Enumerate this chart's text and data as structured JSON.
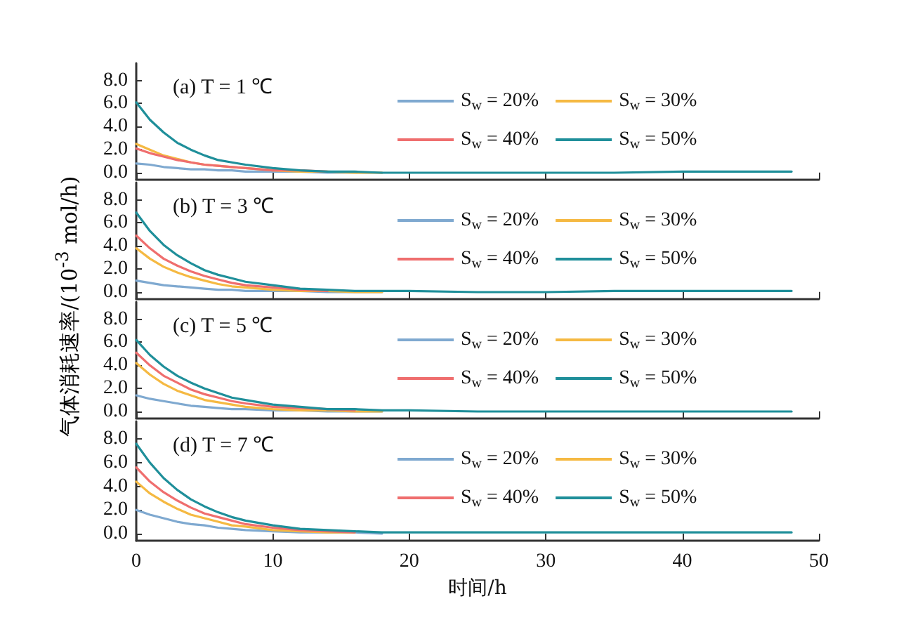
{
  "chart_data": [
    {
      "type": "line",
      "title": "(a) T = 1 ℃",
      "x": [
        0,
        1,
        2,
        3,
        4,
        5,
        6,
        7,
        8,
        10,
        12,
        14,
        16,
        18,
        20,
        25,
        30,
        35,
        40,
        45,
        48
      ],
      "xlim": [
        0,
        50
      ],
      "xticks": [
        0,
        10,
        20,
        30,
        40,
        50
      ],
      "ylim": [
        -0.6,
        9.5
      ],
      "yticks": [
        {
          "value": 0,
          "label": "0.0"
        },
        {
          "value": 2,
          "label": "2.0"
        },
        {
          "value": 4,
          "label": "4.0"
        },
        {
          "value": 6,
          "label": "6.0"
        },
        {
          "value": 8,
          "label": "8.0"
        }
      ],
      "tick_labels": "y",
      "marker": "none",
      "legend": "right",
      "series": [
        {
          "name": "S$_{w}$ = 20%",
          "color": "#7fa9d0",
          "values": [
            0.8,
            0.7,
            0.5,
            0.4,
            0.3,
            0.3,
            0.2,
            0.2,
            0.1,
            0.1,
            0.1,
            0.0,
            0.0,
            0.0,
            null,
            null,
            null,
            null,
            null,
            null,
            null
          ]
        },
        {
          "name": "S$_{w}$ = 30%",
          "color": "#f5b942",
          "values": [
            2.5,
            2.0,
            1.5,
            1.2,
            0.9,
            0.7,
            0.6,
            0.5,
            0.4,
            0.2,
            0.1,
            0.1,
            0.0,
            0.0,
            null,
            null,
            null,
            null,
            null,
            null,
            null
          ]
        },
        {
          "name": "S$_{w}$ = 40%",
          "color": "#ef6e6e",
          "values": [
            2.1,
            1.7,
            1.4,
            1.1,
            0.9,
            0.7,
            0.6,
            0.5,
            0.4,
            0.2,
            0.2,
            0.1,
            null,
            null,
            null,
            null,
            null,
            null,
            null,
            null,
            null
          ]
        },
        {
          "name": "S$_{w}$ = 50%",
          "color": "#1f8f9a",
          "values": [
            6.1,
            4.6,
            3.5,
            2.6,
            2.0,
            1.5,
            1.1,
            0.9,
            0.7,
            0.4,
            0.2,
            0.1,
            0.1,
            0.0,
            0.0,
            0.0,
            0.0,
            0.0,
            0.1,
            0.1,
            0.1
          ]
        }
      ]
    },
    {
      "type": "line",
      "title": "(b) T = 3 ℃",
      "ylabel": "气体消耗速率/(10$^{-3}$ mol/h)",
      "x": [
        0,
        1,
        2,
        3,
        4,
        5,
        6,
        7,
        8,
        10,
        12,
        14,
        16,
        18,
        20,
        25,
        30,
        35,
        40,
        45,
        48
      ],
      "xlim": [
        0,
        50
      ],
      "xticks": [
        0,
        10,
        20,
        30,
        40,
        50
      ],
      "ylim": [
        -0.6,
        9.5
      ],
      "yticks": [
        {
          "value": 0,
          "label": "0.0"
        },
        {
          "value": 2,
          "label": "2.0"
        },
        {
          "value": 4,
          "label": "4.0"
        },
        {
          "value": 6,
          "label": "6.0"
        },
        {
          "value": 8,
          "label": "8.0"
        }
      ],
      "tick_labels": "y",
      "marker": "none",
      "legend": "right",
      "series": [
        {
          "name": "S$_{w}$ = 20%",
          "color": "#7fa9d0",
          "values": [
            1.0,
            0.8,
            0.6,
            0.5,
            0.4,
            0.3,
            0.2,
            0.2,
            0.1,
            0.1,
            0.1,
            0.0,
            0.0,
            0.0,
            null,
            null,
            null,
            null,
            null,
            null,
            null
          ]
        },
        {
          "name": "S$_{w}$ = 30%",
          "color": "#f5b942",
          "values": [
            3.8,
            2.9,
            2.2,
            1.7,
            1.3,
            1.0,
            0.7,
            0.5,
            0.4,
            0.2,
            0.1,
            0.1,
            0.0,
            0.0,
            null,
            null,
            null,
            null,
            null,
            null,
            null
          ]
        },
        {
          "name": "S$_{w}$ = 40%",
          "color": "#ef6e6e",
          "values": [
            4.9,
            3.8,
            2.9,
            2.3,
            1.8,
            1.4,
            1.1,
            0.8,
            0.6,
            0.4,
            0.2,
            0.1,
            null,
            null,
            null,
            null,
            null,
            null,
            null,
            null,
            null
          ]
        },
        {
          "name": "S$_{w}$ = 50%",
          "color": "#1f8f9a",
          "values": [
            6.9,
            5.3,
            4.1,
            3.2,
            2.5,
            1.9,
            1.5,
            1.2,
            0.9,
            0.6,
            0.3,
            0.2,
            0.1,
            0.1,
            0.1,
            0.0,
            0.0,
            0.1,
            0.1,
            0.1,
            0.1
          ]
        }
      ]
    },
    {
      "type": "line",
      "title": "(c) T = 5 ℃",
      "x": [
        0,
        1,
        2,
        3,
        4,
        5,
        6,
        7,
        8,
        10,
        12,
        14,
        16,
        18,
        20,
        25,
        30,
        35,
        40,
        45,
        48
      ],
      "xlim": [
        0,
        50
      ],
      "xticks": [
        0,
        10,
        20,
        30,
        40,
        50
      ],
      "ylim": [
        -0.6,
        9.5
      ],
      "yticks": [
        {
          "value": 0,
          "label": "0.0"
        },
        {
          "value": 2,
          "label": "2.0"
        },
        {
          "value": 4,
          "label": "4.0"
        },
        {
          "value": 6,
          "label": "6.0"
        },
        {
          "value": 8,
          "label": "8.0"
        }
      ],
      "tick_labels": "y",
      "marker": "none",
      "legend": "right",
      "series": [
        {
          "name": "S$_{w}$ = 20%",
          "color": "#7fa9d0",
          "values": [
            1.4,
            1.1,
            0.9,
            0.7,
            0.5,
            0.4,
            0.3,
            0.2,
            0.2,
            0.1,
            0.1,
            0.0,
            0.0,
            0.0,
            null,
            null,
            null,
            null,
            null,
            null,
            null
          ]
        },
        {
          "name": "S$_{w}$ = 30%",
          "color": "#f5b942",
          "values": [
            4.2,
            3.2,
            2.4,
            1.8,
            1.4,
            1.0,
            0.8,
            0.6,
            0.4,
            0.2,
            0.1,
            0.1,
            0.0,
            0.0,
            null,
            null,
            null,
            null,
            null,
            null,
            null
          ]
        },
        {
          "name": "S$_{w}$ = 40%",
          "color": "#ef6e6e",
          "values": [
            5.1,
            4.0,
            3.1,
            2.5,
            1.9,
            1.5,
            1.2,
            0.9,
            0.7,
            0.4,
            0.3,
            0.2,
            0.1,
            null,
            null,
            null,
            null,
            null,
            null,
            null,
            null
          ]
        },
        {
          "name": "S$_{w}$ = 50%",
          "color": "#1f8f9a",
          "values": [
            6.2,
            4.9,
            3.9,
            3.1,
            2.5,
            2.0,
            1.6,
            1.2,
            1.0,
            0.6,
            0.4,
            0.2,
            0.2,
            0.1,
            0.1,
            0.0,
            0.0,
            0.0,
            0.0,
            0.0,
            0.0
          ]
        }
      ]
    },
    {
      "type": "line",
      "title": "(d) T = 7 ℃",
      "xlabel": "时间/h",
      "x": [
        0,
        1,
        2,
        3,
        4,
        5,
        6,
        7,
        8,
        10,
        12,
        14,
        16,
        18,
        20,
        25,
        30,
        35,
        40,
        45,
        48
      ],
      "xlim": [
        0,
        50
      ],
      "xticks": [
        0,
        10,
        20,
        30,
        40,
        50
      ],
      "ylim": [
        -0.6,
        9.5
      ],
      "yticks": [
        {
          "value": 0,
          "label": "0.0"
        },
        {
          "value": 2,
          "label": "2.0"
        },
        {
          "value": 4,
          "label": "4.0"
        },
        {
          "value": 6,
          "label": "6.0"
        },
        {
          "value": 8,
          "label": "8.0"
        }
      ],
      "marker": "none",
      "legend": "right",
      "series": [
        {
          "name": "S$_{w}$ = 20%",
          "color": "#7fa9d0",
          "values": [
            2.0,
            1.6,
            1.3,
            1.0,
            0.8,
            0.7,
            0.5,
            0.4,
            0.3,
            0.2,
            0.1,
            0.1,
            0.1,
            0.0,
            null,
            null,
            null,
            null,
            null,
            null,
            null
          ]
        },
        {
          "name": "S$_{w}$ = 30%",
          "color": "#f5b942",
          "values": [
            4.4,
            3.4,
            2.7,
            2.1,
            1.6,
            1.3,
            1.0,
            0.7,
            0.6,
            0.3,
            0.2,
            0.1,
            0.1,
            null,
            null,
            null,
            null,
            null,
            null,
            null,
            null
          ]
        },
        {
          "name": "S$_{w}$ = 40%",
          "color": "#ef6e6e",
          "values": [
            5.6,
            4.4,
            3.5,
            2.8,
            2.2,
            1.7,
            1.4,
            1.1,
            0.8,
            0.5,
            0.3,
            0.2,
            0.1,
            null,
            null,
            null,
            null,
            null,
            null,
            null,
            null
          ]
        },
        {
          "name": "S$_{w}$ = 50%",
          "color": "#1f8f9a",
          "values": [
            7.6,
            6.0,
            4.7,
            3.7,
            2.9,
            2.3,
            1.8,
            1.4,
            1.1,
            0.7,
            0.4,
            0.3,
            0.2,
            0.1,
            0.1,
            0.1,
            0.1,
            0.1,
            0.1,
            0.1,
            0.1
          ]
        }
      ]
    }
  ]
}
